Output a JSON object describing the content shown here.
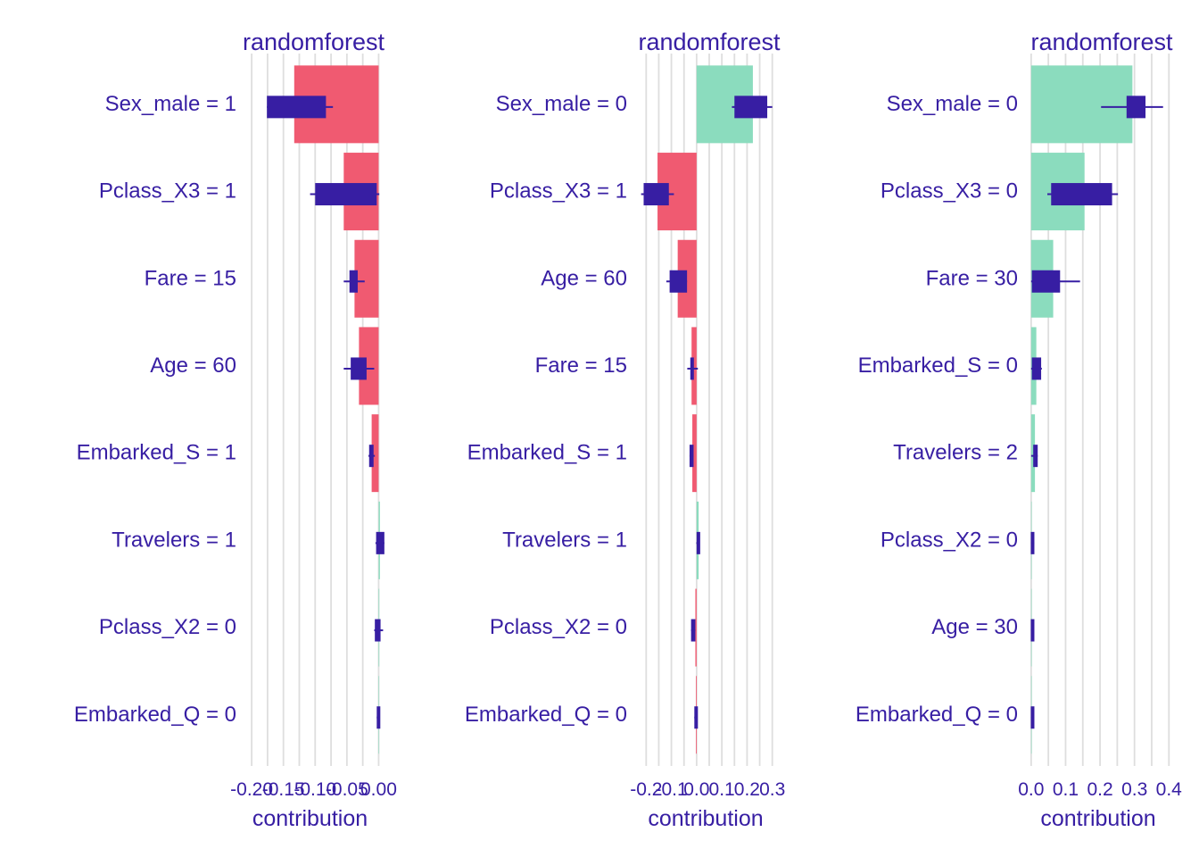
{
  "chart_data": [
    {
      "type": "bar",
      "title": "randomforest",
      "xlabel": "contribution",
      "xlim": [
        -0.21,
        0.005
      ],
      "xticks": [
        -0.2,
        -0.15,
        -0.1,
        -0.05,
        0.0
      ],
      "xtick_labels": [
        "-0.20",
        "-0.15",
        "-0.10",
        "-0.05",
        "0.00"
      ],
      "categories": [
        "Sex_male = 1",
        "Pclass_X3 = 1",
        "Fare = 15",
        "Age = 60",
        "Embarked_S = 1",
        "Travelers = 1",
        "Pclass_X2 = 0",
        "Embarked_Q = 0"
      ],
      "values": [
        -0.133,
        -0.055,
        -0.038,
        -0.031,
        -0.011,
        0.002,
        0.001,
        0.0
      ],
      "boxplots": [
        {
          "min": -0.176,
          "q1": -0.176,
          "q3": -0.083,
          "max": -0.072
        },
        {
          "min": -0.108,
          "q1": -0.1,
          "q3": -0.003,
          "max": 0.001
        },
        {
          "min": -0.055,
          "q1": -0.046,
          "q3": -0.033,
          "max": -0.022
        },
        {
          "min": -0.055,
          "q1": -0.044,
          "q3": -0.019,
          "max": -0.007
        },
        {
          "min": -0.016,
          "q1": -0.015,
          "q3": -0.008,
          "max": -0.006
        },
        {
          "min": -0.005,
          "q1": -0.004,
          "q3": 0.009,
          "max": 0.009
        },
        {
          "min": -0.007,
          "q1": -0.006,
          "q3": 0.003,
          "max": 0.007
        },
        {
          "min": -0.003,
          "q1": -0.003,
          "q3": 0.0,
          "max": 0.0
        }
      ]
    },
    {
      "type": "bar",
      "title": "randomforest",
      "xlabel": "contribution",
      "xlim": [
        -0.24,
        0.34
      ],
      "xticks": [
        -0.2,
        -0.1,
        0.0,
        0.1,
        0.2,
        0.3
      ],
      "xtick_labels": [
        "-0.2",
        "-0.1",
        "0.0",
        "0.1",
        "0.2",
        "0.3"
      ],
      "categories": [
        "Sex_male = 0",
        "Pclass_X3 = 1",
        "Age = 60",
        "Fare = 15",
        "Embarked_S = 1",
        "Travelers = 1",
        "Pclass_X2 = 0",
        "Embarked_Q = 0"
      ],
      "values": [
        0.223,
        -0.155,
        -0.075,
        -0.02,
        -0.017,
        0.008,
        -0.005,
        -0.003
      ],
      "boxplots": [
        {
          "min": 0.14,
          "q1": 0.15,
          "q3": 0.28,
          "max": 0.3
        },
        {
          "min": -0.22,
          "q1": -0.21,
          "q3": -0.11,
          "max": -0.09
        },
        {
          "min": -0.12,
          "q1": -0.107,
          "q3": -0.038,
          "max": -0.038
        },
        {
          "min": -0.037,
          "q1": -0.025,
          "q3": -0.013,
          "max": 0.005
        },
        {
          "min": -0.028,
          "q1": -0.028,
          "q3": -0.012,
          "max": -0.012
        },
        {
          "min": -0.001,
          "q1": 0.0,
          "q3": 0.012,
          "max": 0.012
        },
        {
          "min": -0.022,
          "q1": -0.022,
          "q3": -0.005,
          "max": -0.005
        },
        {
          "min": -0.009,
          "q1": -0.009,
          "q3": 0.0,
          "max": 0.0
        }
      ]
    },
    {
      "type": "bar",
      "title": "randomforest",
      "xlabel": "contribution",
      "xlim": [
        -0.01,
        0.42
      ],
      "xticks": [
        0.0,
        0.1,
        0.2,
        0.3,
        0.4
      ],
      "xtick_labels": [
        "0.0",
        "0.1",
        "0.2",
        "0.3",
        "0.4"
      ],
      "categories": [
        "Sex_male = 0",
        "Pclass_X3 = 0",
        "Fare = 30",
        "Embarked_S = 0",
        "Travelers = 2",
        "Pclass_X2 = 0",
        "Age = 30",
        "Embarked_Q = 0"
      ],
      "values": [
        0.294,
        0.155,
        0.064,
        0.015,
        0.011,
        0.0,
        0.0,
        0.0
      ],
      "boxplots": [
        {
          "min": 0.203,
          "q1": 0.277,
          "q3": 0.332,
          "max": 0.383
        },
        {
          "min": 0.047,
          "q1": 0.058,
          "q3": 0.235,
          "max": 0.252
        },
        {
          "min": 0.0,
          "q1": 0.002,
          "q3": 0.084,
          "max": 0.142
        },
        {
          "min": 0.0,
          "q1": 0.002,
          "q3": 0.029,
          "max": 0.031
        },
        {
          "min": 0.0,
          "q1": 0.006,
          "q3": 0.019,
          "max": 0.019
        },
        {
          "min": -0.001,
          "q1": -0.001,
          "q3": 0.009,
          "max": 0.009
        },
        {
          "min": -0.001,
          "q1": -0.001,
          "q3": 0.006,
          "max": 0.006
        },
        {
          "min": -0.001,
          "q1": -0.001,
          "q3": 0.006,
          "max": 0.006
        }
      ]
    }
  ],
  "colors": {
    "positive": "#8bdcbe",
    "negative": "#f05a71",
    "box": "#371ea3",
    "text": "#371ea3",
    "grid": "#dedede"
  }
}
